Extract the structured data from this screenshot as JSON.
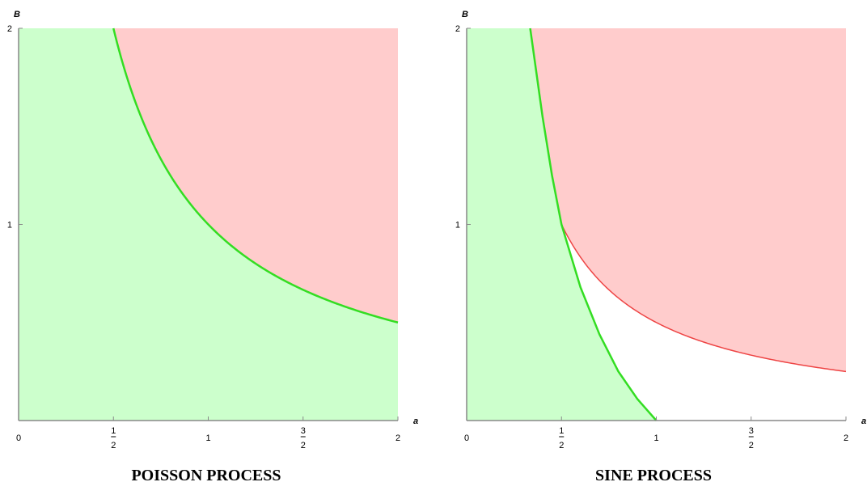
{
  "chart_data": [
    {
      "type": "area",
      "caption": "POISSON PROCESS",
      "xlabel": "a",
      "ylabel": "B",
      "xlim": [
        0,
        2
      ],
      "ylim": [
        0,
        2
      ],
      "x_ticks": [
        {
          "value": 0,
          "label": "0"
        },
        {
          "value": 0.5,
          "num": "1",
          "den": "2"
        },
        {
          "value": 1,
          "label": "1"
        },
        {
          "value": 1.5,
          "num": "3",
          "den": "2"
        },
        {
          "value": 2,
          "label": "2"
        }
      ],
      "y_ticks": [
        {
          "value": 1,
          "label": "1"
        },
        {
          "value": 2,
          "label": "2"
        }
      ],
      "boundary": {
        "formula": "B = 1/a",
        "color": "#33dd22",
        "x_range": [
          0.5,
          2
        ]
      },
      "regions": [
        {
          "color": "#ccffcc",
          "description": "below boundary B = 1/a"
        },
        {
          "color": "#ffcccc",
          "description": "above boundary B = 1/a"
        }
      ]
    },
    {
      "type": "area",
      "caption": "SINE PROCESS",
      "xlabel": "a",
      "ylabel": "B",
      "xlim": [
        0,
        2
      ],
      "ylim": [
        0,
        2
      ],
      "x_ticks": [
        {
          "value": 0,
          "label": "0"
        },
        {
          "value": 0.5,
          "num": "1",
          "den": "2"
        },
        {
          "value": 1,
          "label": "1"
        },
        {
          "value": 1.5,
          "num": "3",
          "den": "2"
        },
        {
          "value": 2,
          "label": "2"
        }
      ],
      "y_ticks": [
        {
          "value": 1,
          "label": "1"
        },
        {
          "value": 2,
          "label": "2"
        }
      ],
      "green_boundary": {
        "points": [
          [
            0.335,
            2
          ],
          [
            0.4,
            1.55
          ],
          [
            0.45,
            1.25
          ],
          [
            0.5,
            1.0
          ],
          [
            0.6,
            0.68
          ],
          [
            0.7,
            0.44
          ],
          [
            0.8,
            0.25
          ],
          [
            0.9,
            0.11
          ],
          [
            1.0,
            0.0
          ]
        ],
        "color": "#33dd22"
      },
      "red_boundary": {
        "formula": "B = 1/(2a)",
        "x_range": [
          0.5,
          2
        ],
        "color": "#ee4444"
      },
      "regions": [
        {
          "color": "#ccffcc",
          "description": "left of green boundary"
        },
        {
          "color": "#ffcccc",
          "description": "above both boundaries"
        },
        {
          "color": "#ffffff",
          "description": "between boundaries"
        }
      ]
    }
  ]
}
